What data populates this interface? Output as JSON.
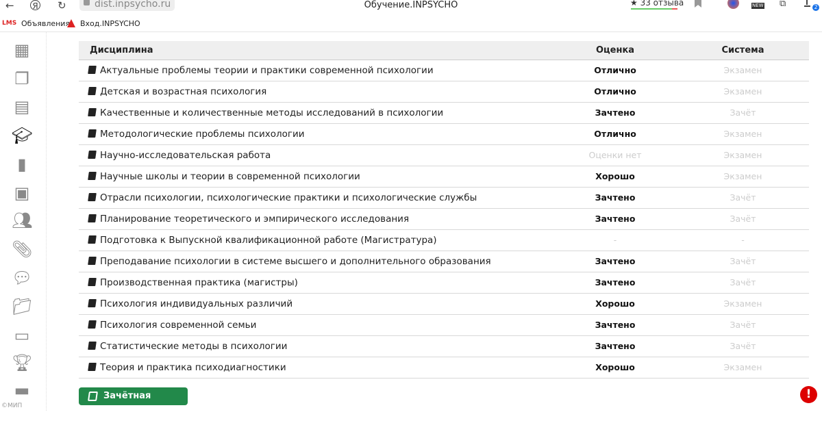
{
  "browser": {
    "url": "dist.inpsycho.ru",
    "title": "Обучение.INPSYCHO",
    "reviews": "★ 33 отзыва",
    "downloads_badge": "2",
    "new_badge": "NEW"
  },
  "bookmarks": [
    {
      "icon": "LMS",
      "label": "Объявления"
    },
    {
      "label": "Вход.INPSYCHO"
    }
  ],
  "sidebar": {
    "items": [
      "apps",
      "documents",
      "calendar",
      "education",
      "bookmark",
      "video",
      "users",
      "attachments",
      "messages",
      "folder",
      "archive",
      "trophy",
      "payment"
    ],
    "active": "education",
    "copyright": "©МИП"
  },
  "table": {
    "headers": [
      "Дисциплина",
      "Оценка",
      "Система"
    ],
    "rows": [
      [
        "Актуальные проблемы теории и практики современной психологии",
        "Отлично",
        "Экзамен"
      ],
      [
        "Детская и возрастная психология",
        "Отлично",
        "Экзамен"
      ],
      [
        "Качественные и количественные методы исследований в психологии",
        "Зачтено",
        "Зачёт"
      ],
      [
        "Методологические проблемы психологии",
        "Отлично",
        "Экзамен"
      ],
      [
        "Научно-исследовательская работа",
        "Оценки нет",
        "Экзамен"
      ],
      [
        "Научные школы и теории в современной психологии",
        "Хорошо",
        "Экзамен"
      ],
      [
        "Отрасли психологии, психологические практики и психологические службы",
        "Зачтено",
        "Зачёт"
      ],
      [
        "Планирование теоретического и эмпирического исследования",
        "Зачтено",
        "Зачёт"
      ],
      [
        "Подготовка к Выпускной квалификационной работе (Магистратура)",
        "-",
        "-"
      ],
      [
        "Преподавание психологии в системе высшего и дополнительного образования",
        "Зачтено",
        "Зачёт"
      ],
      [
        "Производственная практика (магистры)",
        "Зачтено",
        "Зачёт"
      ],
      [
        "Психология индивидуальных различий",
        "Хорошо",
        "Экзамен"
      ],
      [
        "Психология современной семьи",
        "Зачтено",
        "Зачёт"
      ],
      [
        "Статистические методы в психологии",
        "Зачтено",
        "Зачёт"
      ],
      [
        "Теория и практика психодиагностики",
        "Хорошо",
        "Экзамен"
      ]
    ]
  },
  "button": {
    "label": "Зачётная книжка",
    "color": "#22894a"
  },
  "alert": {
    "label": "!"
  }
}
